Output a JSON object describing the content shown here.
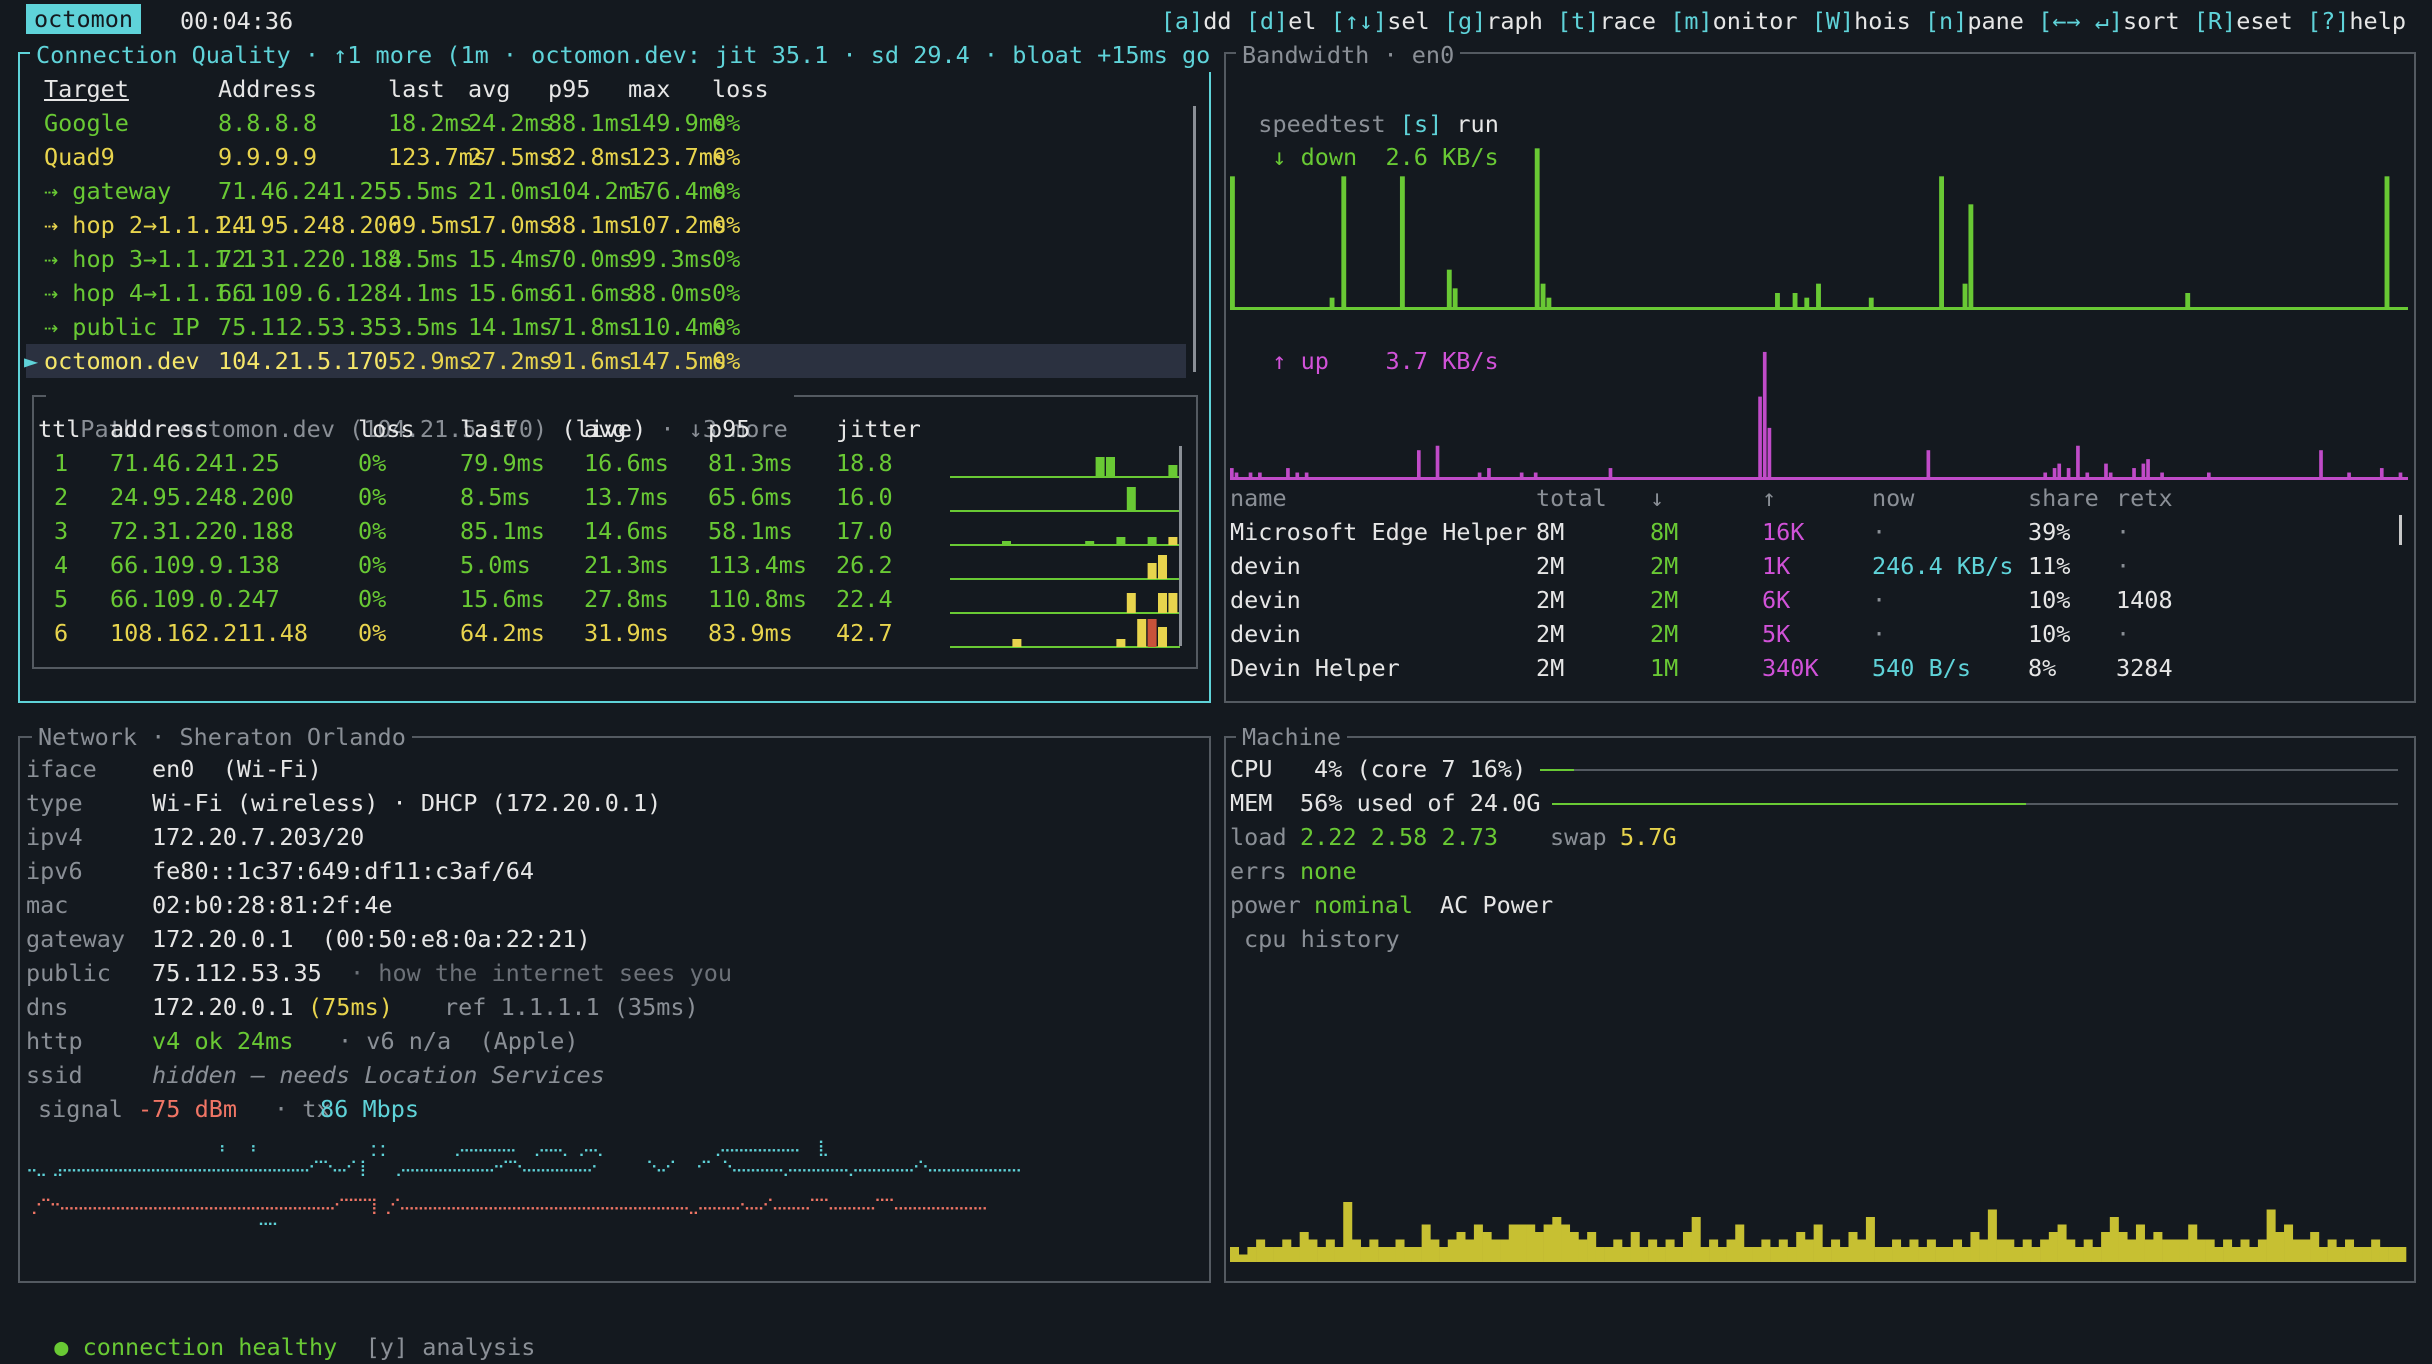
{
  "app": {
    "name": "octomon",
    "uptime": "00:04:36"
  },
  "keys": [
    {
      "k": "[a]",
      "rest": "dd"
    },
    {
      "k": "[d]",
      "rest": "el"
    },
    {
      "k": "[↑↓]",
      "rest": "sel"
    },
    {
      "k": "[g]",
      "rest": "raph"
    },
    {
      "k": "[t]",
      "rest": "race"
    },
    {
      "k": "[m]",
      "rest": "onitor"
    },
    {
      "k": "[W]",
      "rest": "hois"
    },
    {
      "k": "[n]",
      "rest": "pane"
    },
    {
      "k": "[←→ ↵]",
      "rest": "sort"
    },
    {
      "k": "[R]",
      "rest": "eset"
    },
    {
      "k": "[?]",
      "rest": "help"
    }
  ],
  "quality": {
    "title": "Connection Quality · ↑1 more (1m · octomon.dev: jit 35.1 · sd 29.4 · bloat +15ms go",
    "headers": [
      "Target",
      "Address",
      "last",
      "avg",
      "p95",
      "max",
      "loss"
    ],
    "rows": [
      {
        "target": "Google",
        "address": "8.8.8.8",
        "last": "18.2ms",
        "avg": "24.2ms",
        "p95": "88.1ms",
        "max": "149.9ms",
        "loss": "0%",
        "tc": "g",
        "ac": "g"
      },
      {
        "target": "Quad9",
        "address": "9.9.9.9",
        "last": "123.7ms",
        "avg": "27.5ms",
        "p95": "82.8ms",
        "max": "123.7ms",
        "loss": "0%",
        "tc": "y",
        "ac": "y"
      },
      {
        "target": "⇢ gateway",
        "address": "71.46.241.25",
        "last": "5.5ms",
        "avg": "21.0ms",
        "p95": "104.2ms",
        "max": "176.4ms",
        "loss": "0%",
        "tc": "g",
        "ac": "g"
      },
      {
        "target": "⇢ hop 2→1.1.1.1",
        "address": "24.95.248.200",
        "last": "69.5ms",
        "avg": "17.0ms",
        "p95": "88.1ms",
        "max": "107.2ms",
        "loss": "0%",
        "tc": "y",
        "ac": "y"
      },
      {
        "target": "⇢ hop 3→1.1.1.1",
        "address": "72.31.220.188",
        "last": "4.5ms",
        "avg": "15.4ms",
        "p95": "70.0ms",
        "max": "99.3ms",
        "loss": "0%",
        "tc": "g",
        "ac": "g"
      },
      {
        "target": "⇢ hop 4→1.1.1.1",
        "address": "66.109.6.128",
        "last": "4.1ms",
        "avg": "15.6ms",
        "p95": "61.6ms",
        "max": "88.0ms",
        "loss": "0%",
        "tc": "g",
        "ac": "g"
      },
      {
        "target": "⇢ public IP",
        "address": "75.112.53.35",
        "last": "3.5ms",
        "avg": "14.1ms",
        "p95": "71.8ms",
        "max": "110.4ms",
        "loss": "0%",
        "tc": "g",
        "ac": "g"
      },
      {
        "target": "octomon.dev",
        "address": "104.21.5.170",
        "last": "52.9ms",
        "avg": "27.2ms",
        "p95": "91.6ms",
        "max": "147.5ms",
        "loss": "0%",
        "tc": "y",
        "ac": "y",
        "selected": true
      }
    ]
  },
  "path": {
    "title": "Path · octomon.dev (104.21.5.170)",
    "live": "(live)",
    "more": "· ↓3 more",
    "headers": [
      "ttl",
      "address",
      "loss",
      "last",
      "avg",
      "p95",
      "jitter"
    ],
    "rows": [
      {
        "ttl": "1",
        "address": "71.46.241.25",
        "loss": "0%",
        "last": "79.9ms",
        "avg": "16.6ms",
        "p95": "81.3ms",
        "jitter": "18.8",
        "c": "g"
      },
      {
        "ttl": "2",
        "address": "24.95.248.200",
        "loss": "0%",
        "last": "8.5ms",
        "avg": "13.7ms",
        "p95": "65.6ms",
        "jitter": "16.0",
        "c": "g"
      },
      {
        "ttl": "3",
        "address": "72.31.220.188",
        "loss": "0%",
        "last": "85.1ms",
        "avg": "14.6ms",
        "p95": "58.1ms",
        "jitter": "17.0",
        "c": "g"
      },
      {
        "ttl": "4",
        "address": "66.109.9.138",
        "loss": "0%",
        "last": "5.0ms",
        "avg": "21.3ms",
        "p95": "113.4ms",
        "jitter": "26.2",
        "c": "g"
      },
      {
        "ttl": "5",
        "address": "66.109.0.247",
        "loss": "0%",
        "last": "15.6ms",
        "avg": "27.8ms",
        "p95": "110.8ms",
        "jitter": "22.4",
        "c": "g"
      },
      {
        "ttl": "6",
        "address": "108.162.211.48",
        "loss": "0%",
        "last": "64.2ms",
        "avg": "31.9ms",
        "p95": "83.9ms",
        "jitter": "42.7",
        "c": "y"
      }
    ],
    "spark": [
      [
        [
          14,
          5,
          "#69c934"
        ],
        [
          15,
          5,
          "#69c934"
        ],
        [
          21,
          3,
          "#69c934"
        ]
      ],
      [
        [
          17,
          6,
          "#69c934"
        ]
      ],
      [
        [
          5,
          1,
          "#69c934"
        ],
        [
          13,
          1,
          "#69c934"
        ],
        [
          16,
          2,
          "#69c934"
        ],
        [
          19,
          2,
          "#69c934"
        ],
        [
          21,
          2,
          "#e8d44d"
        ]
      ],
      [
        [
          19,
          4,
          "#e8d44d"
        ],
        [
          20,
          6,
          "#e8d44d"
        ]
      ],
      [
        [
          17,
          5,
          "#e8d44d"
        ],
        [
          20,
          5,
          "#e8d44d"
        ],
        [
          21,
          5,
          "#e8d44d"
        ]
      ],
      [
        [
          6,
          2,
          "#e8d44d"
        ],
        [
          16,
          2,
          "#e8d44d"
        ],
        [
          18,
          7,
          "#e8d44d"
        ],
        [
          19,
          7,
          "#c9523a"
        ],
        [
          20,
          5,
          "#e8d44d"
        ]
      ]
    ]
  },
  "bandwidth": {
    "title": "Bandwidth · en0",
    "speedtest_label": "speedtest",
    "speedtest_key": "[s]",
    "speedtest_action": "run",
    "down_label": "↓ down",
    "down_rate": "2.6 KB/s",
    "up_label": "↑ up",
    "up_rate": "3.7 KB/s",
    "down_series": [
      28,
      0,
      0,
      0,
      0,
      0,
      0,
      0,
      0,
      0,
      0,
      0,
      0,
      0,
      0,
      0,
      0,
      2,
      0,
      28,
      0,
      0,
      0,
      0,
      0,
      0,
      0,
      0,
      0,
      28,
      0,
      0,
      0,
      0,
      0,
      0,
      0,
      8,
      4,
      0,
      0,
      0,
      0,
      0,
      0,
      0,
      0,
      0,
      0,
      0,
      0,
      0,
      34,
      5,
      2,
      0,
      0,
      0,
      0,
      0,
      0,
      0,
      0,
      0,
      0,
      0,
      0,
      0,
      0,
      0,
      0,
      0,
      0,
      0,
      0,
      0,
      0,
      0,
      0,
      0,
      0,
      0,
      0,
      0,
      0,
      0,
      0,
      0,
      0,
      0,
      0,
      0,
      0,
      3,
      0,
      0,
      3,
      0,
      2,
      0,
      5,
      0,
      0,
      0,
      0,
      0,
      0,
      0,
      0,
      2,
      0,
      0,
      0,
      0,
      0,
      0,
      0,
      0,
      0,
      0,
      0,
      28,
      0,
      0,
      0,
      5,
      22,
      0,
      0,
      0,
      0,
      0,
      0,
      0,
      0,
      0,
      0,
      0,
      0,
      0,
      0,
      0,
      0,
      0,
      0,
      0,
      0,
      0,
      0,
      0,
      0,
      0,
      0,
      0,
      0,
      0,
      0,
      0,
      0,
      0,
      0,
      0,
      0,
      3,
      0,
      0,
      0,
      0,
      0,
      0,
      0,
      0,
      0,
      0,
      0,
      0,
      0,
      0,
      0,
      0,
      0,
      0,
      0,
      0,
      0,
      0,
      0,
      0,
      0,
      0,
      0,
      0,
      0,
      0,
      0,
      0,
      0,
      28,
      0,
      0,
      0
    ],
    "up_series": [
      2,
      1,
      0,
      0,
      1,
      0,
      1,
      0,
      0,
      0,
      0,
      0,
      2,
      0,
      1,
      0,
      1,
      0,
      0,
      0,
      0,
      0,
      0,
      0,
      0,
      0,
      0,
      0,
      0,
      0,
      0,
      0,
      0,
      0,
      0,
      0,
      0,
      0,
      0,
      0,
      6,
      0,
      0,
      0,
      7,
      0,
      0,
      0,
      0,
      0,
      0,
      0,
      0,
      1,
      0,
      2,
      0,
      0,
      0,
      0,
      0,
      0,
      1,
      0,
      0,
      1,
      0,
      0,
      0,
      0,
      0,
      0,
      0,
      0,
      0,
      0,
      0,
      0,
      0,
      0,
      0,
      2,
      0,
      0,
      0,
      0,
      0,
      0,
      0,
      0,
      0,
      0,
      0,
      0,
      0,
      0,
      0,
      0,
      0,
      0,
      0,
      0,
      0,
      0,
      0,
      0,
      0,
      0,
      0,
      0,
      0,
      0,
      0,
      18,
      28,
      11,
      0,
      0,
      0,
      0,
      0,
      0,
      0,
      0,
      0,
      0,
      0,
      0,
      0,
      0,
      0,
      0,
      0,
      0,
      0,
      0,
      0,
      0,
      0,
      0,
      0,
      0,
      0,
      0,
      0,
      0,
      0,
      0,
      0,
      6,
      0,
      0,
      0,
      0,
      0,
      0,
      0,
      0,
      0,
      0,
      0,
      0,
      0,
      0,
      0,
      0,
      0,
      0,
      0,
      0,
      0,
      0,
      0,
      0,
      1,
      0,
      2,
      3,
      0,
      2,
      0,
      7,
      0,
      1,
      0,
      0,
      0,
      3,
      1,
      0,
      0,
      0,
      0,
      2,
      0,
      3,
      4,
      0,
      0,
      1,
      0,
      0,
      0,
      0,
      0,
      0,
      0,
      0,
      0,
      1,
      0,
      0,
      0,
      0,
      0,
      0,
      0,
      0,
      0,
      0,
      0,
      0,
      0,
      0,
      0,
      0,
      0,
      0,
      0,
      0,
      0,
      0,
      0,
      6,
      0,
      0,
      0,
      0,
      0,
      1,
      0,
      0,
      0,
      0,
      0,
      0,
      2,
      0,
      0,
      0,
      1,
      0
    ],
    "proc_headers": [
      "name",
      "total",
      "↓",
      "↑",
      "now",
      "share",
      "retx"
    ],
    "procs": [
      {
        "name": "Microsoft Edge Helper",
        "total": "8M",
        "down": "8M",
        "up": "16K",
        "now": "·",
        "share": "39%",
        "retx": "·"
      },
      {
        "name": "devin",
        "total": "2M",
        "down": "2M",
        "up": "1K",
        "now": "246.4 KB/s",
        "share": "11%",
        "retx": "·"
      },
      {
        "name": "devin",
        "total": "2M",
        "down": "2M",
        "up": "6K",
        "now": "·",
        "share": "10%",
        "retx": "1408"
      },
      {
        "name": "devin",
        "total": "2M",
        "down": "2M",
        "up": "5K",
        "now": "·",
        "share": "10%",
        "retx": "·"
      },
      {
        "name": "Devin Helper",
        "total": "2M",
        "down": "1M",
        "up": "340K",
        "now": "540 B/s",
        "share": "8%",
        "retx": "3284"
      }
    ]
  },
  "network": {
    "title": "Network · Sheraton Orlando",
    "iface_k": "iface",
    "iface_v": "en0  (Wi-Fi)",
    "type_k": "type",
    "type_v": "Wi-Fi (wireless) · DHCP (172.20.0.1)",
    "ipv4_k": "ipv4",
    "ipv4_v": "172.20.7.203/20",
    "ipv6_k": "ipv6",
    "ipv6_v": "fe80::1c37:649:df11:c3af/64",
    "mac_k": "mac",
    "mac_v": "02:b0:28:81:2f:4e",
    "gw_k": "gateway",
    "gw_v": "172.20.0.1  (00:50:e8:0a:22:21)",
    "pub_k": "public",
    "pub_v": "75.112.53.35",
    "pub_note": "· how the internet sees you",
    "dns_k": "dns",
    "dns_v": "172.20.0.1",
    "dns_ms": "(75ms)",
    "dns_ref": "ref 1.1.1.1 (35ms)",
    "http_k": "http",
    "http_v4": "v4 ok 24ms",
    "http_v6": "· v6 n/a  (Apple)",
    "ssid_k": "ssid",
    "ssid_v": "hidden — needs Location Services",
    "signal_k": "signal",
    "signal_v": "-75 dBm",
    "tx_k": "· tx",
    "tx_v": "86 Mbps",
    "dots_top": "                          ⠰   ⠰                ⡂⡂         ⡠⠤⠤⠤⠤⠤⠄  ⡠⠤⠤⡀ ⡠⠤⡀               ⡠⠤⠤⠤⠤⠤⠤⠤⠤  ⢸⡀",
    "dots_mid": "⠤⣀ ⣠⠤⠤⠤⠤⠤⠤⠤⠤⠤⠤⠤⠤⠤⠤⠤⠤⠤⠤⠤⠤⠤⠤⠤⠤⠤⠤⠔⠉⠑⠤⠔⠁⡇   ⢀⠤⠤⠤⠤⠤⠤⠤⠤⠤⠤⠒⠉⠑⠤⠤⠤⠤⠤⠤⠤⠔       ⠑⠤⠊   ⠊⠁ ⠑⠤⠤⠤⠤⠤⢄⠤⠤⠤⠤⠤⠤⢄⠤⠤⠤⠤⠤⠤⠔⠑⠤⠤⠤⠤⠤⠤⠤⠤⠤⠤",
    "dots_bot": "⢀⠊⠑⠢⠤⠤⠤⠤⠤⠤⠤⠤⠤⠤⠤⠤⠤⠤⠤⠤⠤⠤⠤⠤⠤⠤⠤⠤⠤⠤⠤⠤⠤⠊⠉⠉⠉⡇⢀⠊⠤⠤⠤⠤⠤⠤⠤⠤⠤⠤⠤⠤⠤⠤⠤⠤⠤⠤⠤⠤⠤⠤⠤⠤⠤⠤⠤⠤⠤⠤⠤⣀⠤⠤⠤⠤⠔⠤⠤⠊⠤⠤⠤⠤⠉⠉⠤⠤⠤⠤⠤⠉⠉⠤⠤⠤⠤⠤⠤⠤⠤⠤⠤",
    "dots_tail": "                                ⠉⠉"
  },
  "machine": {
    "title": "Machine",
    "cpu_k": "CPU",
    "cpu_v": "4% (core 7 16%)",
    "cpu_pct": 4,
    "mem_k": "MEM",
    "mem_v": "56% used of 24.0G",
    "mem_pct": 56,
    "load_k": "load",
    "load_v": "2.22 2.58 2.73",
    "swap_k": "swap",
    "swap_v": "5.7G",
    "errs_k": "errs",
    "errs_v": "none",
    "power_k": "power",
    "power_v": "nominal",
    "power_src": "AC Power",
    "hist_label": "cpu history",
    "cpu_history": [
      2,
      1,
      2,
      3,
      2,
      2,
      3,
      2,
      4,
      3,
      2,
      3,
      2,
      8,
      3,
      2,
      3,
      2,
      2,
      3,
      2,
      2,
      5,
      3,
      2,
      3,
      4,
      3,
      5,
      4,
      3,
      3,
      5,
      5,
      5,
      4,
      5,
      6,
      5,
      4,
      3,
      4,
      2,
      2,
      3,
      2,
      4,
      2,
      3,
      2,
      3,
      2,
      4,
      6,
      2,
      3,
      2,
      3,
      5,
      2,
      2,
      3,
      2,
      3,
      2,
      4,
      3,
      5,
      2,
      3,
      2,
      4,
      3,
      6,
      2,
      2,
      3,
      2,
      3,
      2,
      3,
      2,
      2,
      3,
      2,
      4,
      3,
      7,
      3,
      3,
      2,
      3,
      2,
      3,
      4,
      5,
      3,
      2,
      3,
      2,
      4,
      6,
      4,
      3,
      5,
      3,
      4,
      3,
      3,
      3,
      5,
      3,
      3,
      2,
      3,
      2,
      3,
      2,
      3,
      7,
      4,
      5,
      3,
      3,
      4,
      2,
      3,
      2,
      3,
      2,
      2,
      3,
      2,
      2,
      2
    ]
  },
  "status": {
    "dot": "●",
    "text": "connection healthy",
    "key": "[y]",
    "action": "analysis"
  }
}
